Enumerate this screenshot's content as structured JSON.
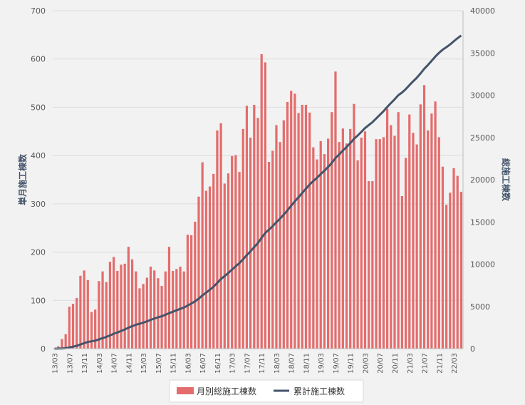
{
  "chart_data": {
    "type": "bar+line",
    "title": "",
    "left_axis_label": "単月施工棟数",
    "right_axis_label": "総施工棟数",
    "left_ylim": [
      0,
      700
    ],
    "left_ticks": [
      0,
      100,
      200,
      300,
      400,
      500,
      600,
      700
    ],
    "right_ylim": [
      0,
      40000
    ],
    "right_ticks": [
      0,
      5000,
      10000,
      15000,
      20000,
      25000,
      30000,
      35000,
      40000
    ],
    "grid": true,
    "legend_position": "bottom",
    "x_tick_labels": [
      "13/03",
      "13/07",
      "13/11",
      "14/03",
      "14/07",
      "14/11",
      "15/03",
      "15/07",
      "15/11",
      "16/03",
      "16/07",
      "16/11",
      "17/03",
      "17/07",
      "17/11",
      "18/03",
      "18/07",
      "18/11",
      "19/03",
      "19/07",
      "19/11",
      "20/03",
      "20/07",
      "20/11",
      "21/03",
      "21/07",
      "21/11",
      "22/03"
    ],
    "series": [
      {
        "name": "月別総施工棟数",
        "type": "bar",
        "color": "#e46c6c",
        "values": [
          1,
          5,
          20,
          30,
          87,
          93,
          105,
          151,
          162,
          142,
          76,
          81,
          140,
          160,
          138,
          180,
          190,
          161,
          174,
          176,
          211,
          185,
          160,
          125,
          134,
          147,
          170,
          162,
          146,
          130,
          160,
          211,
          161,
          165,
          170,
          160,
          236,
          235,
          263,
          315,
          386,
          327,
          336,
          362,
          452,
          467,
          342,
          363,
          399,
          401,
          366,
          455,
          503,
          437,
          505,
          478,
          610,
          593,
          387,
          410,
          463,
          428,
          473,
          511,
          534,
          528,
          488,
          505,
          505,
          489,
          417,
          392,
          430,
          403,
          435,
          490,
          574,
          428,
          456,
          425,
          455,
          507,
          390,
          437,
          450,
          347,
          347,
          434,
          434,
          438,
          497,
          463,
          441,
          490,
          316,
          395,
          485,
          447,
          423,
          506,
          546,
          452,
          487,
          512,
          438,
          377,
          298,
          323,
          374,
          358,
          325
        ]
      },
      {
        "name": "累計施工棟数",
        "type": "line",
        "color": "#44546a",
        "note_values_are_cumulative_of_bars": true
      }
    ]
  },
  "legend": {
    "bar_label": "月別総施工棟数",
    "line_label": "累計施工棟数"
  }
}
